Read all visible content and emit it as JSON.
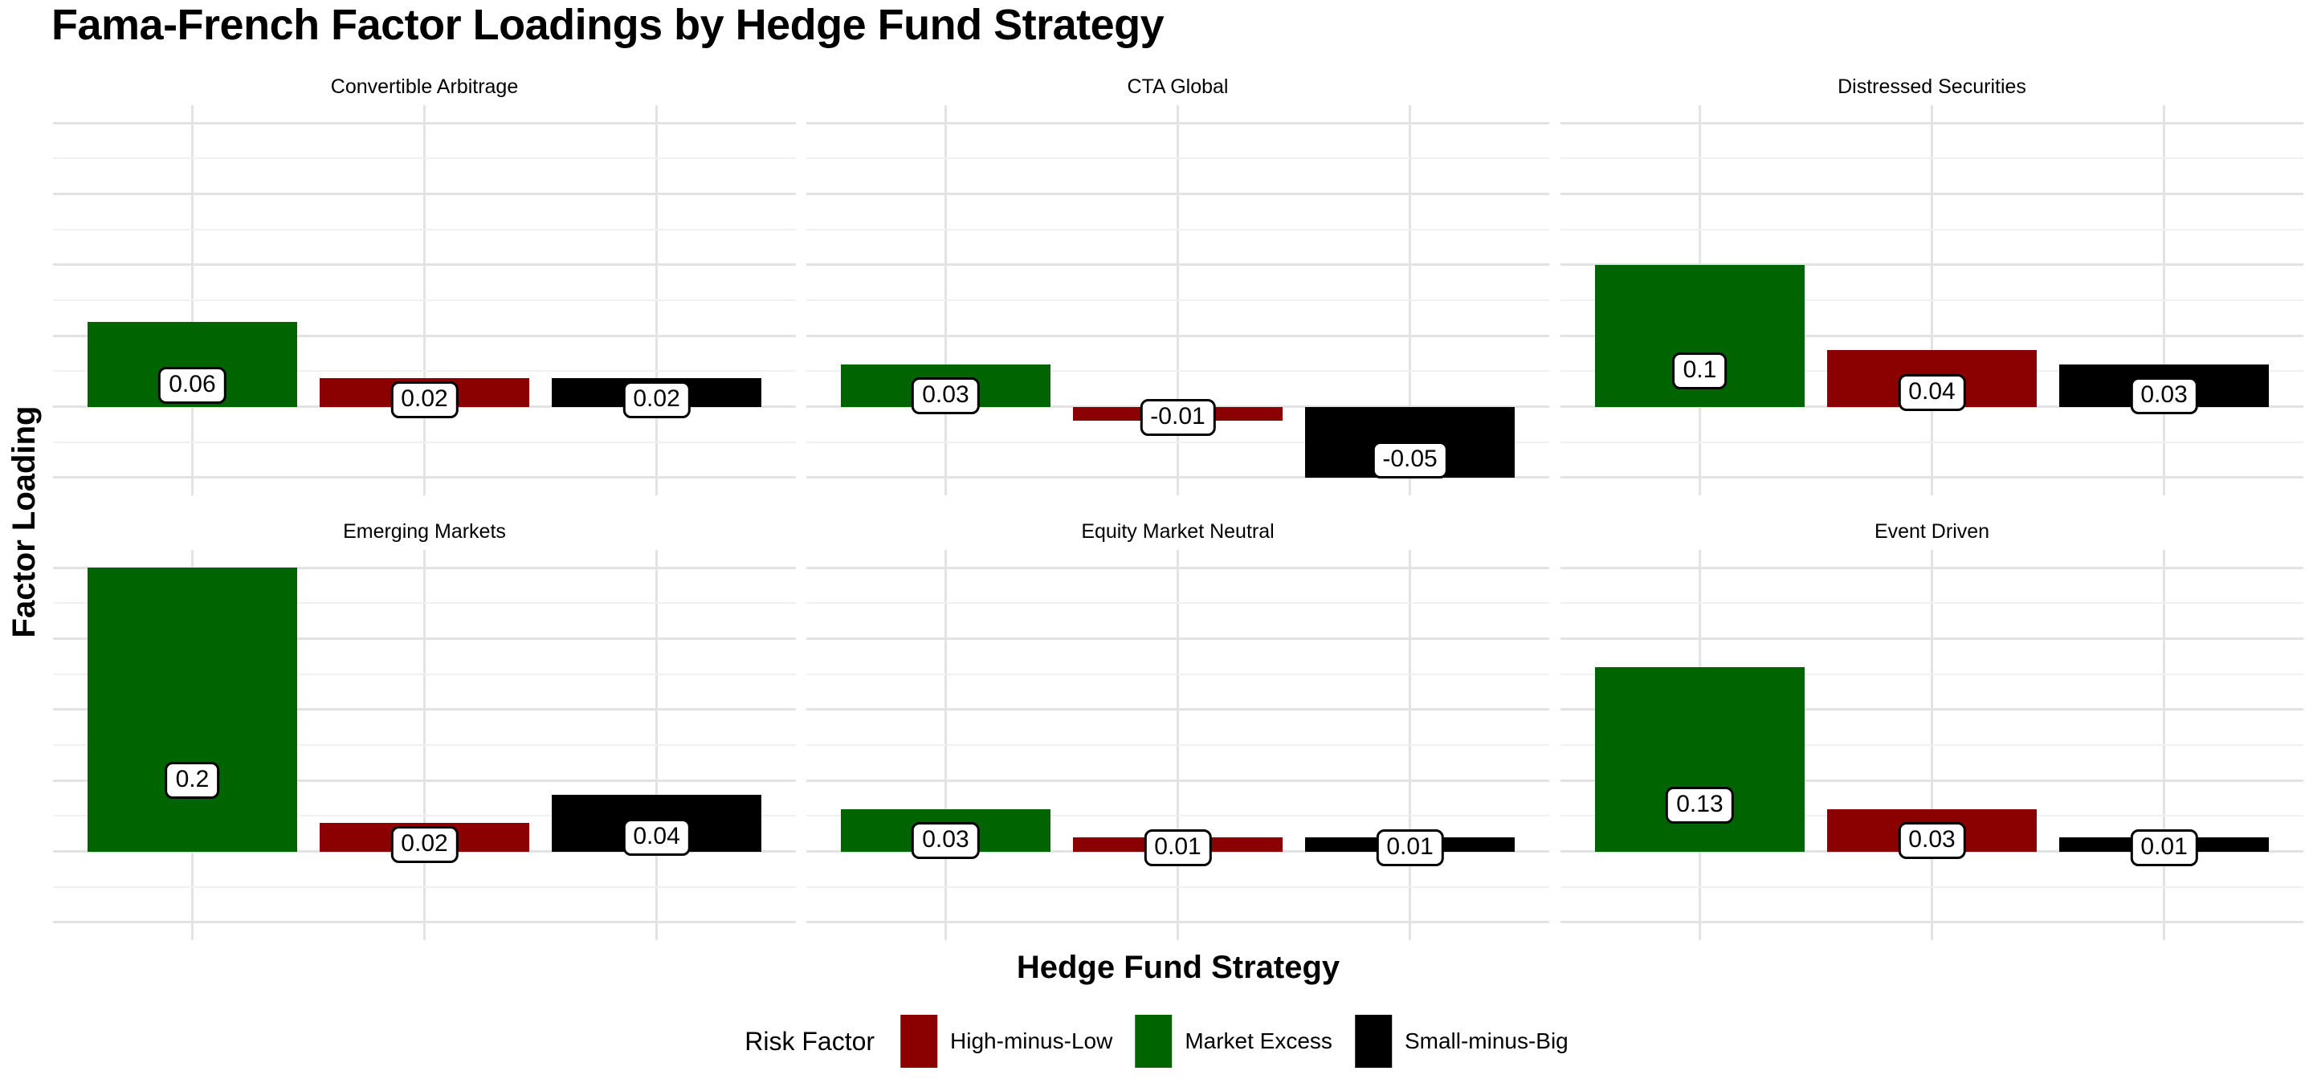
{
  "title": "Fama-French Factor Loadings by Hedge Fund Strategy",
  "axes": {
    "x_title": "Hedge Fund Strategy",
    "y_title": "Factor Loading"
  },
  "legend": {
    "title": "Risk Factor",
    "items": [
      {
        "label": "High-minus-Low",
        "color": "#8B0000"
      },
      {
        "label": "Market Excess",
        "color": "#006400"
      },
      {
        "label": "Small-minus-Big",
        "color": "#000000"
      }
    ]
  },
  "colors": {
    "background": "#ffffff",
    "grid_major": "#e3e3e3",
    "grid_minor": "#f0f0f0",
    "text": "#000000",
    "label_box_bg": "#ffffff",
    "label_box_border": "#000000"
  },
  "chart_data": {
    "type": "bar",
    "faceted": true,
    "facet_grid": {
      "rows": 2,
      "cols": 3
    },
    "title": "Fama-French Factor Loadings by Hedge Fund Strategy",
    "xlabel": "Hedge Fund Strategy",
    "ylabel": "Factor Loading",
    "series_order": [
      {
        "name": "Market Excess",
        "color": "#006400"
      },
      {
        "name": "High-minus-Low",
        "color": "#8B0000"
      },
      {
        "name": "Small-minus-Big",
        "color": "#000000"
      }
    ],
    "facets": [
      {
        "title": "Convertible Arbitrage",
        "values": [
          0.06,
          0.02,
          0.02
        ],
        "labels": [
          "0.06",
          "0.02",
          "0.02"
        ]
      },
      {
        "title": "CTA Global",
        "values": [
          0.03,
          -0.01,
          -0.05
        ],
        "labels": [
          "0.03",
          "-0.01",
          "-0.05"
        ]
      },
      {
        "title": "Distressed Securities",
        "values": [
          0.1,
          0.04,
          0.03
        ],
        "labels": [
          "0.1",
          "0.04",
          "0.03"
        ]
      },
      {
        "title": "Emerging Markets",
        "values": [
          0.2,
          0.02,
          0.04
        ],
        "labels": [
          "0.2",
          "0.02",
          "0.04"
        ]
      },
      {
        "title": "Equity Market Neutral",
        "values": [
          0.03,
          0.01,
          0.01
        ],
        "labels": [
          "0.03",
          "0.01",
          "0.01"
        ]
      },
      {
        "title": "Event Driven",
        "values": [
          0.13,
          0.03,
          0.01
        ],
        "labels": [
          "0.13",
          "0.03",
          "0.01"
        ]
      }
    ],
    "ylim": [
      -0.0625,
      0.2125
    ],
    "gridlines": {
      "major_values": [
        0.2,
        0.15,
        0.1,
        0.05,
        0,
        -0.05
      ],
      "minor_values": [
        0.175,
        0.125,
        0.075,
        0.025,
        -0.025
      ],
      "grid_on": true
    },
    "y_tick_labels_shown": false,
    "x_tick_labels_shown": false,
    "legend_position": "bottom",
    "bar_value_labels_shown": true
  }
}
